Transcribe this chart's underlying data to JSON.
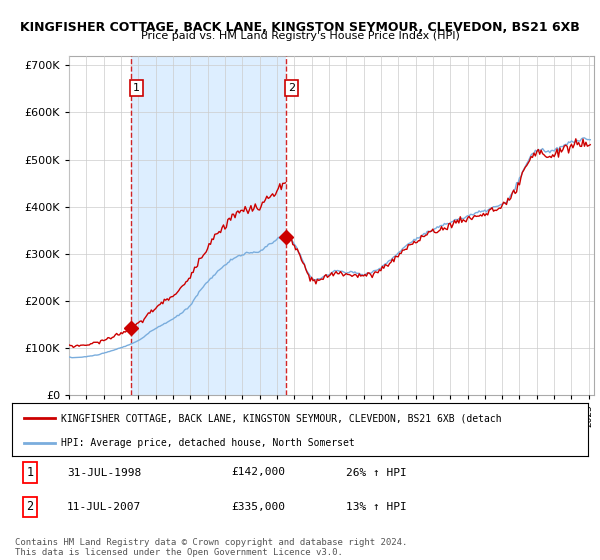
{
  "title_line1": "KINGFISHER COTTAGE, BACK LANE, KINGSTON SEYMOUR, CLEVEDON, BS21 6XB",
  "title_line2": "Price paid vs. HM Land Registry's House Price Index (HPI)",
  "ylim": [
    0,
    720000
  ],
  "xlim_start": 1995.0,
  "xlim_end": 2025.3,
  "background_color": "#ffffff",
  "grid_color": "#cccccc",
  "sale_color": "#cc0000",
  "hpi_color": "#7aaddd",
  "shade_color": "#ddeeff",
  "sale1_year": 1998.58,
  "sale1_price": 142000,
  "sale2_year": 2007.53,
  "sale2_price": 335000,
  "legend_sale_label": "KINGFISHER COTTAGE, BACK LANE, KINGSTON SEYMOUR, CLEVEDON, BS21 6XB (detach",
  "legend_hpi_label": "HPI: Average price, detached house, North Somerset",
  "annotation_1_date": "31-JUL-1998",
  "annotation_1_price": "£142,000",
  "annotation_1_hpi": "26% ↑ HPI",
  "annotation_2_date": "11-JUL-2007",
  "annotation_2_price": "£335,000",
  "annotation_2_hpi": "13% ↑ HPI",
  "footer": "Contains HM Land Registry data © Crown copyright and database right 2024.\nThis data is licensed under the Open Government Licence v3.0."
}
